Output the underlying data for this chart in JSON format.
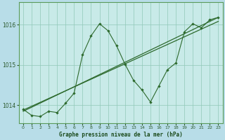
{
  "title": "Graphe pression niveau de la mer (hPa)",
  "background_color": "#b8dde8",
  "plot_bg_color": "#c8eae8",
  "line_color": "#2d6a2d",
  "grid_color": "#90c8b8",
  "xlim": [
    -0.5,
    23.5
  ],
  "ylim": [
    1013.55,
    1016.55
  ],
  "yticks": [
    1014,
    1015,
    1016
  ],
  "xticks": [
    0,
    1,
    2,
    3,
    4,
    5,
    6,
    7,
    8,
    9,
    10,
    11,
    12,
    13,
    14,
    15,
    16,
    17,
    18,
    19,
    20,
    21,
    22,
    23
  ],
  "jagged": {
    "x": [
      0,
      1,
      2,
      3,
      4,
      5,
      6,
      7,
      8,
      9,
      10,
      11,
      12,
      13,
      14,
      15,
      16,
      17,
      18,
      19,
      20,
      21,
      22,
      23
    ],
    "y": [
      1013.9,
      1013.75,
      1013.72,
      1013.85,
      1013.82,
      1014.05,
      1014.3,
      1015.25,
      1015.72,
      1016.02,
      1015.85,
      1015.48,
      1015.02,
      1014.62,
      1014.38,
      1014.08,
      1014.48,
      1014.88,
      1015.05,
      1015.82,
      1016.02,
      1015.92,
      1016.12,
      1016.18
    ]
  },
  "trend1_x": [
    0,
    23
  ],
  "trend1_y": [
    1013.85,
    1016.18
  ],
  "trend2_x": [
    0,
    23
  ],
  "trend2_y": [
    1013.88,
    1016.08
  ]
}
